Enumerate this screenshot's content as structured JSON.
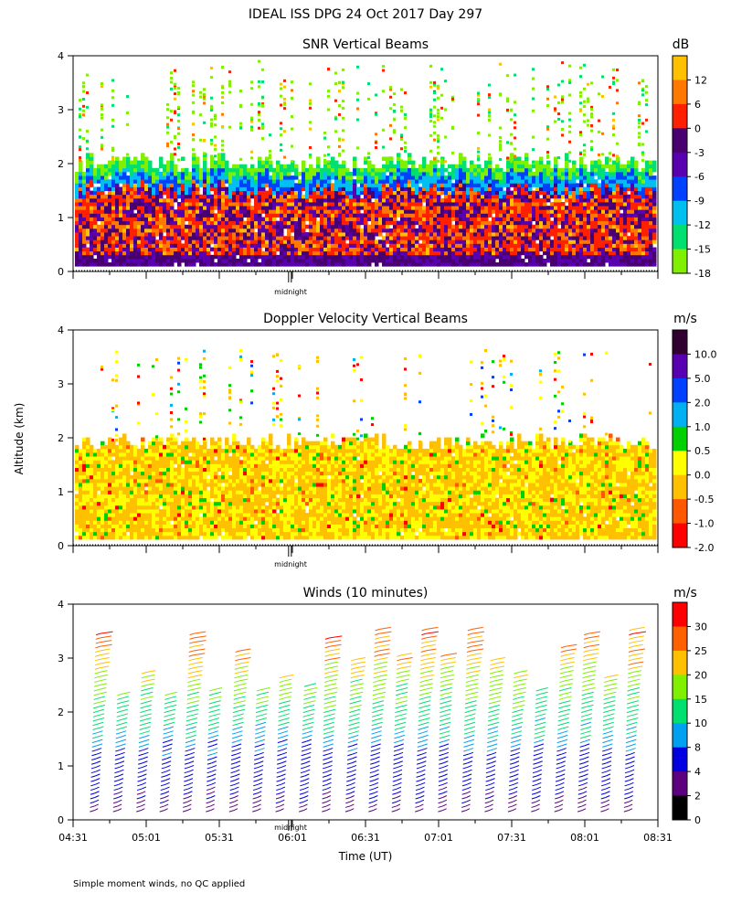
{
  "figure_title": "IDEAL ISS DPG  24 Oct 2017 Day 297",
  "footnote": "Simple moment winds, no QC applied",
  "midnight_label": "midnight",
  "colors": {
    "snr": [
      "#80f000",
      "#00e070",
      "#00c0f0",
      "#0040ff",
      "#5800b0",
      "#480070",
      "#ff2000",
      "#ff7800",
      "#ffc000"
    ],
    "doppler": [
      "#ff0000",
      "#ff5800",
      "#ffc000",
      "#ffff00",
      "#00d000",
      "#00b0f0",
      "#0040ff",
      "#5800b0",
      "#300030"
    ],
    "winds": [
      "#000000",
      "#5c0080",
      "#0000e0",
      "#00a0f0",
      "#00e070",
      "#80f000",
      "#ffc000",
      "#ff6000",
      "#ff0000"
    ]
  },
  "chart_data": [
    {
      "type": "heatmap",
      "title": "SNR Vertical Beams",
      "colorbar_unit": "dB",
      "colorbar_labels": [
        "12",
        "6",
        "0",
        "-3",
        "-6",
        "-9",
        "-12",
        "-15",
        "-18"
      ],
      "ylim": [
        0,
        4
      ],
      "yticks": [
        "0",
        "1",
        "2",
        "3",
        "4"
      ],
      "xlim_hours": [
        4.5167,
        8.5167
      ],
      "x_tick_labels": [],
      "echo_top_km": 2.0,
      "scattered_echo_km": [
        2.0,
        3.9
      ]
    },
    {
      "type": "heatmap",
      "title": "Doppler Velocity Vertical Beams",
      "colorbar_unit": "m/s",
      "colorbar_labels": [
        "10.0",
        "5.0",
        "2.0",
        "1.0",
        "0.5",
        "0.0",
        "-0.5",
        "-1.0",
        "-2.0"
      ],
      "ylabel": "Altitude (km)",
      "ylim": [
        0,
        4
      ],
      "yticks": [
        "0",
        "1",
        "2",
        "3",
        "4"
      ],
      "xlim_hours": [
        4.5167,
        8.5167
      ],
      "x_tick_labels": [],
      "echo_top_km": 1.9,
      "scattered_echo_km": [
        1.9,
        3.6
      ]
    },
    {
      "type": "scatter",
      "subtype": "wind-barbs",
      "title": "Winds (10 minutes)",
      "colorbar_unit": "m/s",
      "colorbar_labels": [
        "30",
        "25",
        "20",
        "15",
        "10",
        "8",
        "4",
        "2",
        "0"
      ],
      "ylim": [
        0,
        4
      ],
      "yticks": [
        "0",
        "1",
        "2",
        "3",
        "4"
      ],
      "xlim_hours": [
        4.5167,
        8.5167
      ],
      "x_tick_labels": [
        "04:31",
        "05:01",
        "05:31",
        "06:01",
        "06:31",
        "07:01",
        "07:31",
        "08:01",
        "08:31"
      ],
      "xlabel": "Time (UT)",
      "profile_count": 24,
      "speed_profile": [
        [
          0.1,
          3
        ],
        [
          1.0,
          6
        ],
        [
          1.5,
          9
        ],
        [
          2.0,
          13
        ],
        [
          2.6,
          18
        ],
        [
          3.0,
          24
        ],
        [
          3.6,
          30
        ]
      ]
    }
  ]
}
